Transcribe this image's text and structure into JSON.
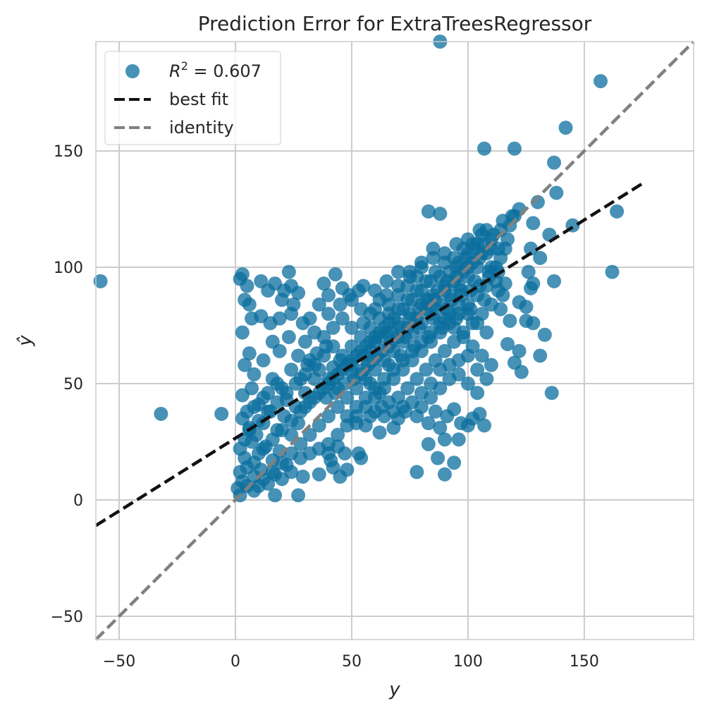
{
  "chart_data": {
    "type": "scatter",
    "title": "Prediction Error for ExtraTreesRegressor",
    "xlabel": "y",
    "ylabel": "ŷ",
    "xlim": [
      -60,
      197
    ],
    "ylim": [
      -60,
      197
    ],
    "x_ticks": [
      -50,
      0,
      50,
      100,
      150
    ],
    "y_ticks": [
      -50,
      0,
      50,
      100,
      150
    ],
    "x_tick_labels": [
      "−50",
      "0",
      "50",
      "100",
      "150"
    ],
    "y_tick_labels": [
      "−50",
      "0",
      "50",
      "100",
      "150"
    ],
    "grid": true,
    "legend_position": "upper-left",
    "colors": {
      "points": "#0a6e9e",
      "best_fit": "#111111",
      "identity": "#808080",
      "grid": "#cccccc",
      "spine": "#cccccc"
    },
    "legend": {
      "r2_prefix": "R",
      "r2_exponent": "2",
      "r2_value": " = 0.607",
      "best_fit_label": "best fit",
      "identity_label": "identity"
    },
    "best_fit": {
      "x": [
        -60,
        175
      ],
      "y": [
        -11,
        136
      ]
    },
    "identity": {
      "x": [
        -60,
        197
      ],
      "y": [
        -60,
        197
      ]
    },
    "cloud_note_extents": {
      "x": [
        0,
        122
      ],
      "y": [
        0,
        125
      ]
    },
    "points": [
      [
        88,
        197
      ],
      [
        157,
        180
      ],
      [
        142,
        160
      ],
      [
        107,
        151
      ],
      [
        120,
        151
      ],
      [
        137,
        145
      ],
      [
        138,
        132
      ],
      [
        83,
        124
      ],
      [
        88,
        123
      ],
      [
        164,
        124
      ],
      [
        145,
        118
      ],
      [
        130,
        128
      ],
      [
        128,
        119
      ],
      [
        122,
        125
      ],
      [
        120,
        122
      ],
      [
        135,
        114
      ],
      [
        127,
        108
      ],
      [
        131,
        104
      ],
      [
        126,
        98
      ],
      [
        128,
        93
      ],
      [
        137,
        94
      ],
      [
        162,
        98
      ],
      [
        -58,
        94
      ],
      [
        -32,
        37
      ],
      [
        -6,
        37
      ],
      [
        136,
        46
      ],
      [
        133,
        71
      ],
      [
        131,
        62
      ],
      [
        125,
        77
      ],
      [
        128,
        76
      ],
      [
        123,
        55
      ],
      [
        120,
        59
      ],
      [
        122,
        64
      ],
      [
        117,
        67
      ],
      [
        118,
        77
      ],
      [
        114,
        82
      ],
      [
        122,
        85
      ],
      [
        116,
        93
      ],
      [
        125,
        83
      ],
      [
        127,
        91
      ],
      [
        2,
        95
      ],
      [
        3,
        97
      ],
      [
        5,
        92
      ],
      [
        4,
        86
      ],
      [
        6,
        84
      ],
      [
        11,
        94
      ],
      [
        14,
        90
      ],
      [
        17,
        93
      ],
      [
        21,
        90
      ],
      [
        23,
        98
      ],
      [
        24,
        92
      ],
      [
        27,
        89
      ],
      [
        20,
        86
      ],
      [
        25,
        84
      ],
      [
        7,
        78
      ],
      [
        11,
        79
      ],
      [
        15,
        76
      ],
      [
        19,
        78
      ],
      [
        24,
        80
      ],
      [
        29,
        76
      ],
      [
        32,
        78
      ],
      [
        36,
        84
      ],
      [
        40,
        88
      ],
      [
        38,
        93
      ],
      [
        43,
        97
      ],
      [
        46,
        91
      ],
      [
        49,
        88
      ],
      [
        53,
        90
      ],
      [
        3,
        72
      ],
      [
        6,
        63
      ],
      [
        4,
        58
      ],
      [
        8,
        54
      ],
      [
        12,
        60
      ],
      [
        16,
        68
      ],
      [
        19,
        64
      ],
      [
        23,
        70
      ],
      [
        27,
        62
      ],
      [
        31,
        58
      ],
      [
        35,
        63
      ],
      [
        39,
        66
      ],
      [
        42,
        57
      ],
      [
        3,
        45
      ],
      [
        7,
        48
      ],
      [
        10,
        41
      ],
      [
        14,
        46
      ],
      [
        18,
        50
      ],
      [
        22,
        43
      ],
      [
        26,
        40
      ],
      [
        30,
        46
      ],
      [
        34,
        52
      ],
      [
        3,
        35
      ],
      [
        6,
        31
      ],
      [
        9,
        28
      ],
      [
        12,
        33
      ],
      [
        15,
        38
      ],
      [
        18,
        30
      ],
      [
        21,
        36
      ],
      [
        24,
        28
      ],
      [
        27,
        33
      ],
      [
        2,
        22
      ],
      [
        4,
        18
      ],
      [
        7,
        25
      ],
      [
        10,
        20
      ],
      [
        13,
        23
      ],
      [
        16,
        17
      ],
      [
        19,
        21
      ],
      [
        22,
        15
      ],
      [
        2,
        12
      ],
      [
        3,
        8
      ],
      [
        5,
        14
      ],
      [
        8,
        10
      ],
      [
        11,
        13
      ],
      [
        14,
        7
      ],
      [
        17,
        11
      ],
      [
        20,
        9
      ],
      [
        1,
        5
      ],
      [
        2,
        2
      ],
      [
        5,
        6
      ],
      [
        8,
        4
      ],
      [
        17,
        2
      ],
      [
        27,
        2
      ],
      [
        24,
        12
      ],
      [
        29,
        10
      ],
      [
        36,
        11
      ],
      [
        42,
        14
      ],
      [
        45,
        10
      ],
      [
        48,
        13
      ],
      [
        40,
        20
      ],
      [
        44,
        23
      ],
      [
        47,
        20
      ],
      [
        53,
        20
      ],
      [
        54,
        18
      ],
      [
        41,
        17
      ],
      [
        52,
        33
      ],
      [
        56,
        32
      ],
      [
        58,
        36
      ],
      [
        60,
        38
      ],
      [
        62,
        29
      ],
      [
        63,
        40
      ],
      [
        68,
        31
      ],
      [
        70,
        35
      ],
      [
        73,
        38
      ],
      [
        78,
        36
      ],
      [
        80,
        40
      ],
      [
        83,
        33
      ],
      [
        86,
        38
      ],
      [
        88,
        31
      ],
      [
        91,
        36
      ],
      [
        94,
        39
      ],
      [
        97,
        33
      ],
      [
        100,
        32
      ],
      [
        102,
        35
      ],
      [
        105,
        37
      ],
      [
        107,
        32
      ],
      [
        90,
        11
      ],
      [
        94,
        16
      ],
      [
        87,
        18
      ],
      [
        78,
        12
      ],
      [
        83,
        24
      ],
      [
        90,
        26
      ],
      [
        96,
        26
      ],
      [
        30,
        68
      ],
      [
        34,
        72
      ],
      [
        38,
        70
      ],
      [
        42,
        74
      ],
      [
        46,
        78
      ],
      [
        50,
        74
      ],
      [
        54,
        82
      ],
      [
        58,
        80
      ],
      [
        62,
        86
      ],
      [
        66,
        84
      ],
      [
        70,
        88
      ],
      [
        74,
        92
      ],
      [
        78,
        96
      ],
      [
        82,
        94
      ],
      [
        86,
        98
      ],
      [
        90,
        102
      ],
      [
        94,
        104
      ],
      [
        98,
        108
      ],
      [
        102,
        110
      ],
      [
        106,
        114
      ],
      [
        110,
        112
      ],
      [
        114,
        116
      ],
      [
        118,
        118
      ],
      [
        108,
        106
      ],
      [
        104,
        100
      ],
      [
        100,
        96
      ],
      [
        96,
        92
      ],
      [
        92,
        88
      ],
      [
        88,
        84
      ],
      [
        84,
        80
      ],
      [
        80,
        76
      ],
      [
        76,
        72
      ],
      [
        72,
        68
      ],
      [
        68,
        64
      ],
      [
        64,
        60
      ],
      [
        60,
        56
      ],
      [
        56,
        52
      ],
      [
        52,
        48
      ],
      [
        48,
        44
      ],
      [
        44,
        40
      ],
      [
        40,
        36
      ],
      [
        36,
        32
      ],
      [
        32,
        28
      ],
      [
        28,
        24
      ],
      [
        24,
        20
      ],
      [
        20,
        16
      ],
      [
        16,
        12
      ],
      [
        12,
        9
      ],
      [
        10,
        6
      ],
      [
        45,
        60
      ],
      [
        50,
        55
      ],
      [
        55,
        62
      ],
      [
        60,
        68
      ],
      [
        65,
        72
      ],
      [
        70,
        76
      ],
      [
        75,
        80
      ],
      [
        80,
        84
      ],
      [
        85,
        88
      ],
      [
        90,
        92
      ],
      [
        95,
        96
      ],
      [
        100,
        100
      ],
      [
        105,
        104
      ],
      [
        110,
        108
      ],
      [
        112,
        100
      ],
      [
        108,
        92
      ],
      [
        104,
        88
      ],
      [
        100,
        84
      ],
      [
        96,
        80
      ],
      [
        92,
        76
      ],
      [
        88,
        72
      ],
      [
        84,
        68
      ],
      [
        80,
        64
      ],
      [
        76,
        60
      ],
      [
        72,
        56
      ],
      [
        68,
        52
      ],
      [
        64,
        48
      ],
      [
        60,
        44
      ],
      [
        56,
        40
      ],
      [
        52,
        36
      ],
      [
        48,
        32
      ],
      [
        44,
        28
      ],
      [
        40,
        24
      ],
      [
        36,
        22
      ],
      [
        32,
        20
      ],
      [
        28,
        18
      ],
      [
        50,
        66
      ],
      [
        54,
        70
      ],
      [
        58,
        74
      ],
      [
        62,
        78
      ],
      [
        66,
        80
      ],
      [
        70,
        82
      ],
      [
        74,
        86
      ],
      [
        78,
        90
      ],
      [
        82,
        86
      ],
      [
        86,
        82
      ],
      [
        90,
        78
      ],
      [
        94,
        74
      ],
      [
        98,
        70
      ],
      [
        102,
        66
      ],
      [
        106,
        62
      ],
      [
        110,
        58
      ],
      [
        108,
        72
      ],
      [
        104,
        76
      ],
      [
        100,
        80
      ],
      [
        96,
        84
      ],
      [
        92,
        80
      ],
      [
        88,
        76
      ],
      [
        84,
        72
      ],
      [
        80,
        68
      ],
      [
        76,
        64
      ],
      [
        72,
        60
      ],
      [
        68,
        56
      ],
      [
        64,
        52
      ],
      [
        60,
        48
      ],
      [
        56,
        44
      ],
      [
        52,
        40
      ],
      [
        48,
        36
      ],
      [
        44,
        48
      ],
      [
        40,
        52
      ],
      [
        36,
        56
      ],
      [
        32,
        60
      ],
      [
        28,
        52
      ],
      [
        24,
        56
      ],
      [
        20,
        48
      ],
      [
        16,
        52
      ],
      [
        12,
        44
      ],
      [
        8,
        40
      ],
      [
        5,
        38
      ],
      [
        58,
        64
      ],
      [
        62,
        70
      ],
      [
        66,
        66
      ],
      [
        70,
        70
      ],
      [
        74,
        74
      ],
      [
        78,
        78
      ],
      [
        82,
        82
      ],
      [
        86,
        86
      ],
      [
        90,
        90
      ],
      [
        94,
        94
      ],
      [
        98,
        98
      ],
      [
        102,
        102
      ],
      [
        106,
        106
      ],
      [
        110,
        100
      ],
      [
        114,
        104
      ],
      [
        116,
        108
      ],
      [
        112,
        94
      ],
      [
        115,
        88
      ],
      [
        110,
        84
      ],
      [
        106,
        80
      ],
      [
        102,
        76
      ],
      [
        98,
        72
      ],
      [
        94,
        68
      ],
      [
        90,
        64
      ],
      [
        86,
        60
      ],
      [
        82,
        56
      ],
      [
        78,
        52
      ],
      [
        74,
        48
      ],
      [
        70,
        44
      ],
      [
        66,
        42
      ],
      [
        62,
        46
      ],
      [
        58,
        50
      ],
      [
        54,
        54
      ],
      [
        50,
        58
      ],
      [
        46,
        62
      ],
      [
        42,
        66
      ],
      [
        38,
        62
      ],
      [
        34,
        58
      ],
      [
        30,
        54
      ],
      [
        26,
        50
      ],
      [
        22,
        46
      ],
      [
        18,
        42
      ],
      [
        14,
        38
      ],
      [
        10,
        34
      ],
      [
        6,
        30
      ],
      [
        4,
        26
      ],
      [
        55,
        76
      ],
      [
        60,
        82
      ],
      [
        65,
        88
      ],
      [
        70,
        92
      ],
      [
        75,
        96
      ],
      [
        80,
        100
      ],
      [
        85,
        104
      ],
      [
        90,
        106
      ],
      [
        95,
        110
      ],
      [
        100,
        112
      ],
      [
        105,
        116
      ],
      [
        50,
        86
      ],
      [
        55,
        92
      ],
      [
        45,
        84
      ],
      [
        40,
        80
      ],
      [
        60,
        90
      ],
      [
        65,
        94
      ],
      [
        70,
        98
      ],
      [
        75,
        98
      ],
      [
        80,
        102
      ],
      [
        85,
        108
      ],
      [
        93,
        86
      ],
      [
        97,
        88
      ],
      [
        101,
        90
      ],
      [
        105,
        92
      ],
      [
        109,
        96
      ],
      [
        113,
        98
      ],
      [
        88,
        56
      ],
      [
        92,
        58
      ],
      [
        96,
        60
      ],
      [
        100,
        62
      ],
      [
        104,
        56
      ],
      [
        108,
        52
      ],
      [
        84,
        50
      ],
      [
        80,
        46
      ],
      [
        76,
        42
      ],
      [
        72,
        40
      ],
      [
        68,
        38
      ],
      [
        64,
        36
      ],
      [
        84,
        44
      ],
      [
        88,
        48
      ],
      [
        92,
        52
      ],
      [
        96,
        54
      ],
      [
        100,
        50
      ],
      [
        104,
        46
      ],
      [
        66,
        58
      ],
      [
        71,
        62
      ],
      [
        77,
        66
      ],
      [
        83,
        70
      ],
      [
        89,
        74
      ],
      [
        95,
        78
      ],
      [
        101,
        82
      ],
      [
        107,
        86
      ],
      [
        113,
        90
      ],
      [
        57,
        58
      ],
      [
        61,
        62
      ],
      [
        67,
        68
      ],
      [
        73,
        70
      ],
      [
        79,
        74
      ],
      [
        85,
        78
      ],
      [
        91,
        82
      ],
      [
        97,
        90
      ],
      [
        103,
        94
      ],
      [
        109,
        98
      ],
      [
        39,
        44
      ],
      [
        43,
        46
      ],
      [
        47,
        50
      ],
      [
        51,
        52
      ],
      [
        55,
        56
      ],
      [
        59,
        60
      ],
      [
        63,
        64
      ],
      [
        67,
        72
      ],
      [
        71,
        74
      ],
      [
        75,
        78
      ],
      [
        79,
        82
      ],
      [
        83,
        86
      ],
      [
        87,
        90
      ],
      [
        91,
        94
      ],
      [
        95,
        100
      ],
      [
        99,
        104
      ],
      [
        103,
        108
      ],
      [
        107,
        110
      ],
      [
        111,
        114
      ],
      [
        115,
        120
      ],
      [
        119,
        122
      ],
      [
        117,
        112
      ],
      [
        113,
        108
      ],
      [
        30,
        40
      ],
      [
        34,
        44
      ],
      [
        38,
        48
      ],
      [
        42,
        52
      ],
      [
        46,
        56
      ],
      [
        50,
        60
      ],
      [
        54,
        64
      ],
      [
        58,
        68
      ],
      [
        62,
        72
      ],
      [
        66,
        76
      ],
      [
        8,
        16
      ],
      [
        12,
        22
      ],
      [
        16,
        26
      ],
      [
        20,
        30
      ],
      [
        24,
        34
      ],
      [
        28,
        38
      ],
      [
        32,
        42
      ],
      [
        36,
        46
      ],
      [
        40,
        50
      ],
      [
        44,
        54
      ],
      [
        48,
        58
      ],
      [
        52,
        62
      ],
      [
        56,
        66
      ],
      [
        60,
        70
      ],
      [
        64,
        74
      ],
      [
        68,
        78
      ],
      [
        72,
        82
      ],
      [
        76,
        86
      ],
      [
        80,
        90
      ],
      [
        84,
        94
      ],
      [
        88,
        96
      ],
      [
        92,
        98
      ],
      [
        96,
        102
      ],
      [
        100,
        106
      ],
      [
        104,
        110
      ],
      [
        108,
        116
      ]
    ]
  }
}
